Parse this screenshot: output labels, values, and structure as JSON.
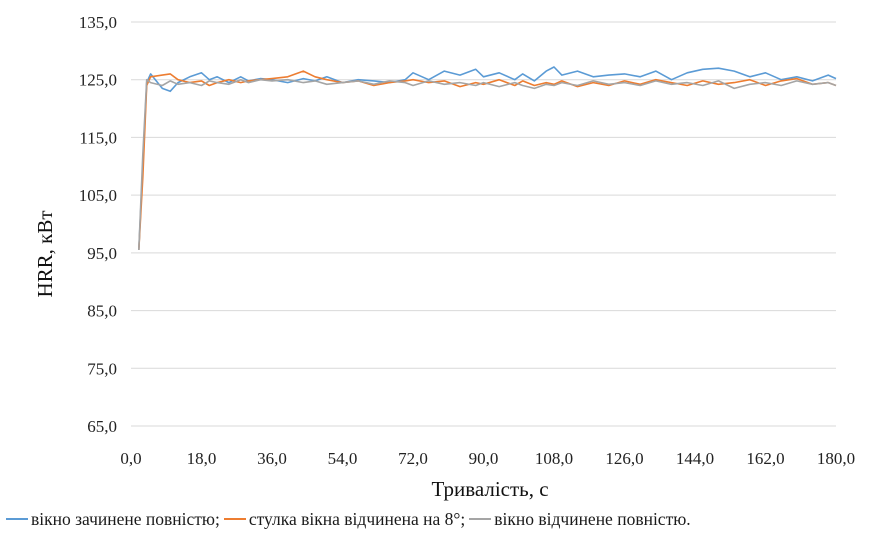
{
  "chart_data": {
    "type": "line",
    "xlabel": "Тривалість, с",
    "ylabel": "HRR, кВт",
    "xlim": [
      0,
      180
    ],
    "ylim": [
      65,
      135
    ],
    "x_ticks": [
      "0,0",
      "18,0",
      "36,0",
      "54,0",
      "72,0",
      "90,0",
      "108,0",
      "126,0",
      "144,0",
      "162,0",
      "180,0"
    ],
    "y_ticks": [
      "65,0",
      "75,0",
      "85,0",
      "95,0",
      "105,0",
      "115,0",
      "125,0",
      "135,0"
    ],
    "grid": true,
    "legend_position": "bottom",
    "x": [
      2.0,
      3.0,
      4.0,
      5,
      8,
      10,
      12,
      15,
      18,
      20,
      22,
      25,
      28,
      30,
      33,
      36,
      40,
      44,
      47,
      50,
      54,
      58,
      62,
      66,
      70,
      72,
      76,
      80,
      84,
      88,
      90,
      94,
      98,
      100,
      103,
      106,
      108,
      110,
      114,
      118,
      122,
      126,
      130,
      134,
      138,
      142,
      146,
      150,
      154,
      158,
      162,
      166,
      170,
      174,
      178,
      180
    ],
    "series": [
      {
        "name": "вікно зачинене повністю;",
        "color": "#5b9bd5",
        "values": [
          95.5,
          110.0,
          124.5,
          126.0,
          123.5,
          123.0,
          124.5,
          125.5,
          126.2,
          125.0,
          125.5,
          124.5,
          125.5,
          124.8,
          125.2,
          125.0,
          124.5,
          125.2,
          124.8,
          125.5,
          124.5,
          125.0,
          124.8,
          124.5,
          125.0,
          126.2,
          125.0,
          126.5,
          125.8,
          126.8,
          125.5,
          126.2,
          125.0,
          126.0,
          124.8,
          126.5,
          127.2,
          125.8,
          126.5,
          125.5,
          125.8,
          126.0,
          125.5,
          126.5,
          125.0,
          126.2,
          126.8,
          127.0,
          126.5,
          125.5,
          126.2,
          125.0,
          125.5,
          124.8,
          125.8,
          125.2
        ]
      },
      {
        "name": "стулка вікна відчинена на 8°;",
        "color": "#ed7d31",
        "values": [
          95.5,
          108.0,
          124.0,
          125.5,
          125.8,
          126.0,
          125.0,
          124.5,
          124.8,
          124.0,
          124.5,
          125.0,
          124.5,
          124.8,
          125.0,
          125.2,
          125.5,
          126.5,
          125.5,
          125.0,
          124.5,
          124.8,
          124.0,
          124.5,
          124.8,
          125.0,
          124.5,
          124.8,
          123.8,
          124.5,
          124.2,
          125.0,
          124.0,
          124.8,
          124.0,
          124.5,
          124.2,
          124.8,
          123.8,
          124.5,
          124.0,
          124.8,
          124.2,
          125.0,
          124.5,
          124.0,
          124.8,
          124.2,
          124.5,
          125.0,
          124.0,
          124.8,
          125.2,
          124.2,
          124.5,
          124.0
        ]
      },
      {
        "name": "вікно відчинене повністю.",
        "color": "#a5a5a5",
        "values": [
          95.5,
          112.0,
          125.0,
          124.5,
          124.0,
          124.8,
          124.2,
          124.5,
          124.0,
          124.8,
          124.5,
          124.2,
          125.0,
          124.5,
          125.0,
          124.8,
          125.0,
          124.5,
          124.8,
          124.2,
          124.5,
          124.8,
          124.2,
          124.8,
          124.5,
          124.0,
          124.8,
          124.2,
          124.5,
          124.0,
          124.5,
          123.8,
          124.5,
          124.0,
          123.5,
          124.2,
          124.0,
          124.5,
          124.0,
          124.8,
          124.2,
          124.5,
          124.0,
          124.8,
          124.2,
          124.5,
          124.0,
          124.8,
          123.5,
          124.2,
          124.5,
          124.0,
          124.8,
          124.2,
          124.5,
          124.0
        ]
      }
    ]
  }
}
